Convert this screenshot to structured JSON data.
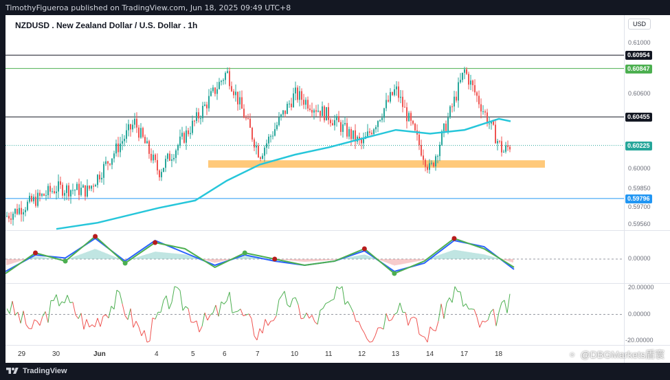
{
  "header": {
    "published_by": "TimothyFigueroa published on TradingView.com, Jun 18, 2025 09:49 UTC+8"
  },
  "chart_header": {
    "title": "NZDUSD . New Zealand Dollar / U.S. Dollar . 1h",
    "currency_button": "USD"
  },
  "footer": {
    "brand": "TradingView",
    "watermark": "@DBGMarkets盾寰"
  },
  "colors": {
    "up": "#26a69a",
    "down": "#ef5350",
    "ma": "#26c6da",
    "resistance_green": "#4caf50",
    "line_black": "#131722",
    "support_blue": "#2196f3",
    "zone": "#ffb74d",
    "last_price": "#26a69a"
  },
  "chart_data": [
    {
      "type": "candlestick",
      "pane": "price",
      "title": "NZDUSD . New Zealand Dollar / U.S. Dollar . 1h",
      "x_ticks": [
        "29",
        "30",
        "Jun",
        "4",
        "5",
        "6",
        "7",
        "10",
        "11",
        "12",
        "13",
        "14",
        "17",
        "18"
      ],
      "y_ticks": [
        "0.61000",
        "0.60800",
        "0.60600",
        "0.60400",
        "0.60000",
        "0.59850",
        "0.59700",
        "0.59560"
      ],
      "ylim": [
        0.5954,
        0.611
      ],
      "ohlc_anchors": [
        {
          "x": "29",
          "close": 0.5965
        },
        {
          "x": "30",
          "close": 0.5988
        },
        {
          "x": "Jun",
          "close": 0.5986
        },
        {
          "x": "Jun",
          "close": 0.6041
        },
        {
          "x": "4",
          "close": 0.6001
        },
        {
          "x": "5",
          "close": 0.6042
        },
        {
          "x": "6",
          "close": 0.6082
        },
        {
          "x": "7",
          "close": 0.6015
        },
        {
          "x": "10",
          "close": 0.6064
        },
        {
          "x": "11",
          "close": 0.6046
        },
        {
          "x": "12",
          "close": 0.6023
        },
        {
          "x": "13",
          "close": 0.6068
        },
        {
          "x": "14",
          "close": 0.6002
        },
        {
          "x": "17",
          "close": 0.6083
        },
        {
          "x": "18",
          "close": 0.6017
        },
        {
          "x": "18",
          "close": 0.6023
        }
      ],
      "horizontal_levels": [
        {
          "value": 0.60954,
          "label": "0.60954",
          "color": "#131722"
        },
        {
          "value": 0.60847,
          "label": "0.60847",
          "color": "#4caf50"
        },
        {
          "value": 0.60455,
          "label": "0.60455",
          "color": "#131722"
        },
        {
          "value": 0.60225,
          "label": "0.60225",
          "color": "#26a69a"
        },
        {
          "value": 0.59796,
          "label": "0.59796",
          "color": "#2196f3"
        }
      ],
      "support_zone": {
        "from": 0.60045,
        "to": 0.60105
      },
      "moving_average": [
        {
          "x": "30",
          "value": 0.5955
        },
        {
          "x": "Jun",
          "value": 0.596
        },
        {
          "x": "4",
          "value": 0.5972
        },
        {
          "x": "5",
          "value": 0.5978
        },
        {
          "x": "6",
          "value": 0.5994
        },
        {
          "x": "7",
          "value": 0.6007
        },
        {
          "x": "10",
          "value": 0.6015
        },
        {
          "x": "11",
          "value": 0.6021
        },
        {
          "x": "12",
          "value": 0.6028
        },
        {
          "x": "13",
          "value": 0.6035
        },
        {
          "x": "14",
          "value": 0.6032
        },
        {
          "x": "17",
          "value": 0.6035
        },
        {
          "x": "18",
          "value": 0.6044
        },
        {
          "x": "18",
          "value": 0.6042
        }
      ]
    },
    {
      "type": "line",
      "pane": "oscillator",
      "y_ticks": [
        "0.00000"
      ],
      "series": [
        {
          "color": "#2962ff",
          "values": [
            -0.6,
            0.2,
            0.05,
            1.0,
            -0.1,
            0.9,
            0.3,
            -0.3,
            0.2,
            -0.1,
            -0.3,
            -0.1,
            0.4,
            -0.6,
            -0.2,
            0.9,
            0.6,
            -0.5
          ]
        },
        {
          "color": "#4caf50",
          "values": [
            -0.7,
            0.3,
            -0.1,
            1.1,
            -0.2,
            0.8,
            0.5,
            -0.4,
            0.3,
            0.0,
            -0.3,
            -0.1,
            0.5,
            -0.7,
            -0.1,
            1.0,
            0.5,
            -0.4
          ]
        }
      ]
    },
    {
      "type": "line",
      "pane": "momentum",
      "y_ticks": [
        "20.00000",
        "0.00000",
        "-20.00000"
      ],
      "ylim": [
        -22,
        22
      ],
      "series": [
        {
          "color": "#4caf50",
          "values": [
            8,
            -12,
            14,
            -10,
            12,
            -18,
            16,
            -8,
            10,
            -14,
            12,
            -6,
            18,
            -16,
            10,
            -20,
            18,
            -10,
            8
          ]
        }
      ]
    }
  ]
}
